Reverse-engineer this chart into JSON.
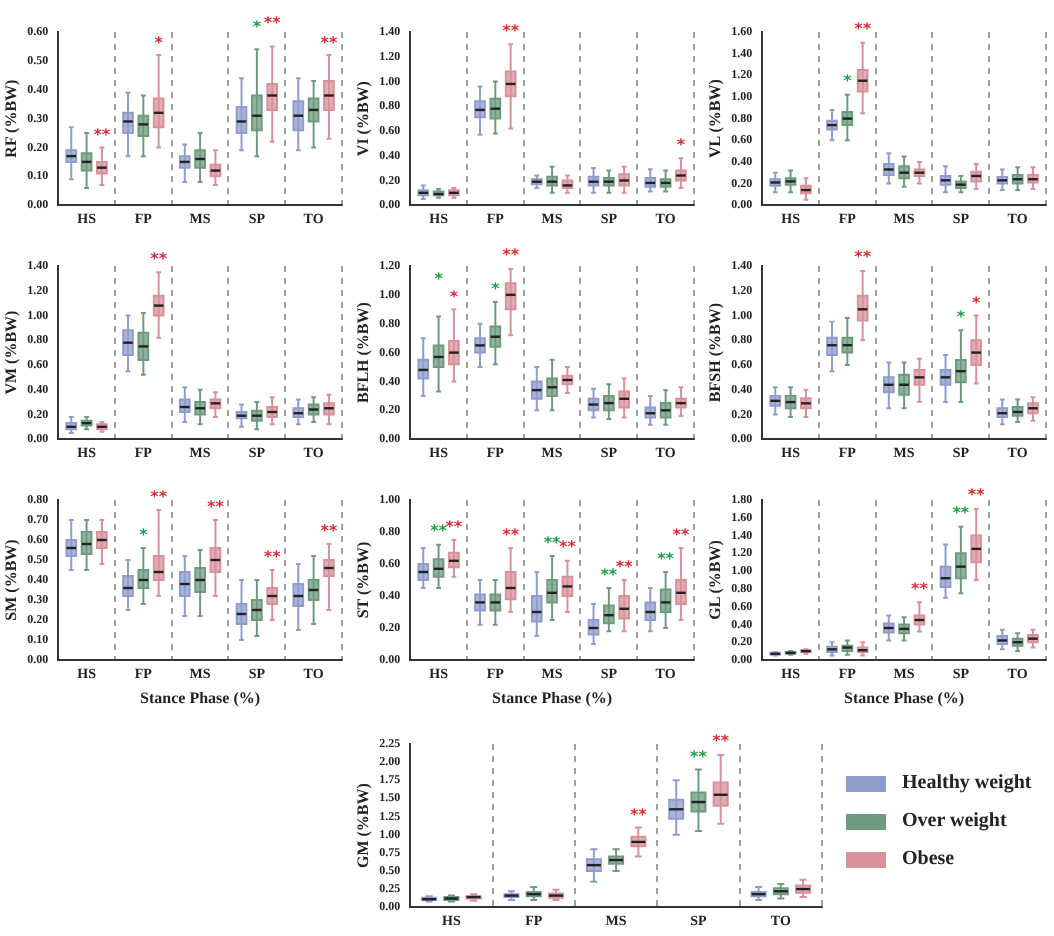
{
  "chart_data": [
    {
      "type": "box",
      "ylabel": "RF (%BW)",
      "categories": [
        "HS",
        "FP",
        "MS",
        "SP",
        "TO"
      ],
      "ylim": [
        0,
        0.6
      ],
      "yticks": [
        {
          "value": 0,
          "label": "0.00"
        },
        {
          "value": 0.1,
          "label": "0.10"
        },
        {
          "value": 0.2,
          "label": "0.20"
        },
        {
          "value": 0.3,
          "label": "0.30"
        },
        {
          "value": 0.4,
          "label": "0.40"
        },
        {
          "value": 0.5,
          "label": "0.50"
        },
        {
          "value": 0.6,
          "label": "0.60"
        }
      ],
      "grid": "x",
      "series": [
        {
          "color": "#8f9ccc",
          "boxes": [
            {
              "low": 0.09,
              "q1": 0.15,
              "median": 0.17,
              "q3": 0.19,
              "high": 0.27
            },
            {
              "low": 0.17,
              "q1": 0.25,
              "median": 0.29,
              "q3": 0.32,
              "high": 0.39
            },
            {
              "low": 0.08,
              "q1": 0.13,
              "median": 0.15,
              "q3": 0.17,
              "high": 0.21
            },
            {
              "low": 0.19,
              "q1": 0.25,
              "median": 0.29,
              "q3": 0.34,
              "high": 0.44
            },
            {
              "low": 0.19,
              "q1": 0.26,
              "median": 0.31,
              "q3": 0.36,
              "high": 0.44
            }
          ]
        },
        {
          "color": "#6e9a7e",
          "boxes": [
            {
              "low": 0.06,
              "q1": 0.12,
              "median": 0.15,
              "q3": 0.18,
              "high": 0.25
            },
            {
              "low": 0.17,
              "q1": 0.24,
              "median": 0.28,
              "q3": 0.31,
              "high": 0.38
            },
            {
              "low": 0.08,
              "q1": 0.13,
              "median": 0.16,
              "q3": 0.19,
              "high": 0.25
            },
            {
              "low": 0.17,
              "q1": 0.26,
              "median": 0.31,
              "q3": 0.38,
              "high": 0.54
            },
            {
              "low": 0.2,
              "q1": 0.29,
              "median": 0.33,
              "q3": 0.37,
              "high": 0.43
            }
          ]
        },
        {
          "color": "#d8909a",
          "boxes": [
            {
              "low": 0.07,
              "q1": 0.11,
              "median": 0.13,
              "q3": 0.15,
              "high": 0.2
            },
            {
              "low": 0.2,
              "q1": 0.27,
              "median": 0.32,
              "q3": 0.37,
              "high": 0.52
            },
            {
              "low": 0.07,
              "q1": 0.1,
              "median": 0.12,
              "q3": 0.14,
              "high": 0.19
            },
            {
              "low": 0.22,
              "q1": 0.33,
              "median": 0.38,
              "q3": 0.42,
              "high": 0.55
            },
            {
              "low": 0.23,
              "q1": 0.33,
              "median": 0.38,
              "q3": 0.43,
              "high": 0.52
            }
          ]
        }
      ],
      "annotations": [
        "**",
        "*",
        "*",
        "**",
        "**"
      ]
    },
    {
      "type": "box",
      "ylabel": "VI (%BW)",
      "categories": [
        "HS",
        "FP",
        "MS",
        "SP",
        "TO"
      ],
      "ylim": [
        0,
        1.4
      ],
      "yticks": [
        {
          "value": 0,
          "label": "0.00"
        },
        {
          "value": 0.2,
          "label": "0.20"
        },
        {
          "value": 0.4,
          "label": "0.40"
        },
        {
          "value": 0.6,
          "label": "0.60"
        },
        {
          "value": 0.8,
          "label": "0.80"
        },
        {
          "value": 1,
          "label": "1.00"
        },
        {
          "value": 1.2,
          "label": "1.20"
        },
        {
          "value": 1.4,
          "label": "1.40"
        }
      ],
      "grid": "x",
      "series": [
        {
          "color": "#8f9ccc",
          "boxes": [
            {
              "low": 0.05,
              "q1": 0.08,
              "median": 0.1,
              "q3": 0.12,
              "high": 0.16
            },
            {
              "low": 0.57,
              "q1": 0.71,
              "median": 0.77,
              "q3": 0.84,
              "high": 0.96
            },
            {
              "low": 0.14,
              "q1": 0.17,
              "median": 0.19,
              "q3": 0.21,
              "high": 0.24
            },
            {
              "low": 0.1,
              "q1": 0.16,
              "median": 0.19,
              "q3": 0.23,
              "high": 0.3
            },
            {
              "low": 0.11,
              "q1": 0.15,
              "median": 0.18,
              "q3": 0.22,
              "high": 0.29
            }
          ]
        },
        {
          "color": "#6e9a7e",
          "boxes": [
            {
              "low": 0.06,
              "q1": 0.08,
              "median": 0.09,
              "q3": 0.11,
              "high": 0.13
            },
            {
              "low": 0.58,
              "q1": 0.7,
              "median": 0.78,
              "q3": 0.86,
              "high": 1.0
            },
            {
              "low": 0.1,
              "q1": 0.16,
              "median": 0.19,
              "q3": 0.23,
              "high": 0.31
            },
            {
              "low": 0.1,
              "q1": 0.16,
              "median": 0.19,
              "q3": 0.22,
              "high": 0.28
            },
            {
              "low": 0.11,
              "q1": 0.15,
              "median": 0.18,
              "q3": 0.21,
              "high": 0.28
            }
          ]
        },
        {
          "color": "#d8909a",
          "boxes": [
            {
              "low": 0.06,
              "q1": 0.08,
              "median": 0.1,
              "q3": 0.12,
              "high": 0.14
            },
            {
              "low": 0.62,
              "q1": 0.88,
              "median": 0.98,
              "q3": 1.08,
              "high": 1.3
            },
            {
              "low": 0.1,
              "q1": 0.14,
              "median": 0.16,
              "q3": 0.2,
              "high": 0.24
            },
            {
              "low": 0.1,
              "q1": 0.16,
              "median": 0.2,
              "q3": 0.25,
              "high": 0.31
            },
            {
              "low": 0.14,
              "q1": 0.2,
              "median": 0.24,
              "q3": 0.28,
              "high": 0.38
            }
          ]
        }
      ],
      "annotations": [
        "**",
        "*"
      ]
    },
    {
      "type": "box",
      "ylabel": "VL (%BW)",
      "categories": [
        "HS",
        "FP",
        "MS",
        "SP",
        "TO"
      ],
      "ylim": [
        0,
        1.6
      ],
      "yticks": [
        {
          "value": 0,
          "label": "0.00"
        },
        {
          "value": 0.2,
          "label": "0.20"
        },
        {
          "value": 0.4,
          "label": "0.40"
        },
        {
          "value": 0.6,
          "label": "0.60"
        },
        {
          "value": 0.8,
          "label": "0.80"
        },
        {
          "value": 1,
          "label": "1.00"
        },
        {
          "value": 1.2,
          "label": "1.20"
        },
        {
          "value": 1.4,
          "label": "1.40"
        },
        {
          "value": 1.6,
          "label": "1.60"
        }
      ],
      "grid": "x",
      "series": [
        {
          "color": "#8f9ccc",
          "boxes": [
            {
              "low": 0.12,
              "q1": 0.18,
              "median": 0.21,
              "q3": 0.24,
              "high": 0.3
            },
            {
              "low": 0.6,
              "q1": 0.7,
              "median": 0.74,
              "q3": 0.78,
              "high": 0.88
            },
            {
              "low": 0.2,
              "q1": 0.28,
              "median": 0.33,
              "q3": 0.38,
              "high": 0.48
            },
            {
              "low": 0.12,
              "q1": 0.19,
              "median": 0.23,
              "q3": 0.27,
              "high": 0.36
            },
            {
              "low": 0.14,
              "q1": 0.2,
              "median": 0.23,
              "q3": 0.26,
              "high": 0.33
            }
          ]
        },
        {
          "color": "#6e9a7e",
          "boxes": [
            {
              "low": 0.12,
              "q1": 0.19,
              "median": 0.22,
              "q3": 0.25,
              "high": 0.32
            },
            {
              "low": 0.6,
              "q1": 0.74,
              "median": 0.8,
              "q3": 0.86,
              "high": 1.02
            },
            {
              "low": 0.17,
              "q1": 0.25,
              "median": 0.3,
              "q3": 0.36,
              "high": 0.45
            },
            {
              "low": 0.12,
              "q1": 0.16,
              "median": 0.19,
              "q3": 0.22,
              "high": 0.27
            },
            {
              "low": 0.14,
              "q1": 0.2,
              "median": 0.24,
              "q3": 0.28,
              "high": 0.35
            }
          ]
        },
        {
          "color": "#d8909a",
          "boxes": [
            {
              "low": 0.05,
              "q1": 0.11,
              "median": 0.14,
              "q3": 0.18,
              "high": 0.25
            },
            {
              "low": 0.85,
              "q1": 1.05,
              "median": 1.15,
              "q3": 1.25,
              "high": 1.5
            },
            {
              "low": 0.2,
              "q1": 0.27,
              "median": 0.3,
              "q3": 0.33,
              "high": 0.4
            },
            {
              "low": 0.15,
              "q1": 0.22,
              "median": 0.27,
              "q3": 0.31,
              "high": 0.38
            },
            {
              "low": 0.15,
              "q1": 0.21,
              "median": 0.24,
              "q3": 0.28,
              "high": 0.35
            }
          ]
        }
      ],
      "annotations": [
        "*",
        "**"
      ]
    },
    {
      "type": "box",
      "ylabel": "VM (%BW)",
      "categories": [
        "HS",
        "FP",
        "MS",
        "SP",
        "TO"
      ],
      "ylim": [
        0,
        1.4
      ],
      "yticks": [
        {
          "value": 0,
          "label": "0.00"
        },
        {
          "value": 0.2,
          "label": "0.20"
        },
        {
          "value": 0.4,
          "label": "0.40"
        },
        {
          "value": 0.6,
          "label": "0.60"
        },
        {
          "value": 0.8,
          "label": "0.80"
        },
        {
          "value": 1,
          "label": "1.00"
        },
        {
          "value": 1.2,
          "label": "1.20"
        },
        {
          "value": 1.4,
          "label": "1.40"
        }
      ],
      "grid": "x",
      "series": [
        {
          "color": "#8f9ccc",
          "boxes": [
            {
              "low": 0.05,
              "q1": 0.08,
              "median": 0.1,
              "q3": 0.13,
              "high": 0.18
            },
            {
              "low": 0.55,
              "q1": 0.68,
              "median": 0.78,
              "q3": 0.88,
              "high": 1.0
            },
            {
              "low": 0.14,
              "q1": 0.22,
              "median": 0.26,
              "q3": 0.32,
              "high": 0.42
            },
            {
              "low": 0.1,
              "q1": 0.17,
              "median": 0.19,
              "q3": 0.22,
              "high": 0.28
            },
            {
              "low": 0.12,
              "q1": 0.18,
              "median": 0.21,
              "q3": 0.25,
              "high": 0.32
            }
          ]
        },
        {
          "color": "#6e9a7e",
          "boxes": [
            {
              "low": 0.08,
              "q1": 0.11,
              "median": 0.13,
              "q3": 0.15,
              "high": 0.18
            },
            {
              "low": 0.52,
              "q1": 0.64,
              "median": 0.75,
              "q3": 0.86,
              "high": 1.02
            },
            {
              "low": 0.12,
              "q1": 0.2,
              "median": 0.25,
              "q3": 0.3,
              "high": 0.4
            },
            {
              "low": 0.08,
              "q1": 0.15,
              "median": 0.19,
              "q3": 0.23,
              "high": 0.3
            },
            {
              "low": 0.14,
              "q1": 0.2,
              "median": 0.24,
              "q3": 0.28,
              "high": 0.34
            }
          ]
        },
        {
          "color": "#d8909a",
          "boxes": [
            {
              "low": 0.06,
              "q1": 0.08,
              "median": 0.1,
              "q3": 0.12,
              "high": 0.14
            },
            {
              "low": 0.82,
              "q1": 1.0,
              "median": 1.08,
              "q3": 1.16,
              "high": 1.35
            },
            {
              "low": 0.18,
              "q1": 0.25,
              "median": 0.29,
              "q3": 0.32,
              "high": 0.38
            },
            {
              "low": 0.12,
              "q1": 0.18,
              "median": 0.22,
              "q3": 0.26,
              "high": 0.34
            },
            {
              "low": 0.12,
              "q1": 0.2,
              "median": 0.25,
              "q3": 0.29,
              "high": 0.36
            }
          ]
        }
      ],
      "annotations": [
        "**"
      ]
    },
    {
      "type": "box",
      "ylabel": "BFLH (%BW)",
      "categories": [
        "HS",
        "FP",
        "MS",
        "SP",
        "TO"
      ],
      "ylim": [
        0,
        1.2
      ],
      "yticks": [
        {
          "value": 0,
          "label": "0.00"
        },
        {
          "value": 0.2,
          "label": "0.20"
        },
        {
          "value": 0.4,
          "label": "0.40"
        },
        {
          "value": 0.6,
          "label": "0.60"
        },
        {
          "value": 0.8,
          "label": "0.80"
        },
        {
          "value": 1,
          "label": "1.00"
        },
        {
          "value": 1.2,
          "label": "1.20"
        }
      ],
      "grid": "x",
      "series": [
        {
          "color": "#8f9ccc",
          "boxes": [
            {
              "low": 0.3,
              "q1": 0.42,
              "median": 0.48,
              "q3": 0.55,
              "high": 0.7
            },
            {
              "low": 0.5,
              "q1": 0.6,
              "median": 0.65,
              "q3": 0.7,
              "high": 0.8
            },
            {
              "low": 0.2,
              "q1": 0.28,
              "median": 0.34,
              "q3": 0.4,
              "high": 0.5
            },
            {
              "low": 0.15,
              "q1": 0.2,
              "median": 0.24,
              "q3": 0.28,
              "high": 0.35
            },
            {
              "low": 0.1,
              "q1": 0.15,
              "median": 0.18,
              "q3": 0.22,
              "high": 0.3
            }
          ]
        },
        {
          "color": "#6e9a7e",
          "boxes": [
            {
              "low": 0.33,
              "q1": 0.5,
              "median": 0.57,
              "q3": 0.65,
              "high": 0.85
            },
            {
              "low": 0.52,
              "q1": 0.64,
              "median": 0.71,
              "q3": 0.78,
              "high": 0.95
            },
            {
              "low": 0.2,
              "q1": 0.3,
              "median": 0.36,
              "q3": 0.42,
              "high": 0.55
            },
            {
              "low": 0.14,
              "q1": 0.2,
              "median": 0.25,
              "q3": 0.3,
              "high": 0.38
            },
            {
              "low": 0.1,
              "q1": 0.15,
              "median": 0.2,
              "q3": 0.25,
              "high": 0.34
            }
          ]
        },
        {
          "color": "#d8909a",
          "boxes": [
            {
              "low": 0.4,
              "q1": 0.52,
              "median": 0.6,
              "q3": 0.68,
              "high": 0.9
            },
            {
              "low": 0.72,
              "q1": 0.9,
              "median": 1.0,
              "q3": 1.08,
              "high": 1.18
            },
            {
              "low": 0.32,
              "q1": 0.38,
              "median": 0.41,
              "q3": 0.44,
              "high": 0.5
            },
            {
              "low": 0.15,
              "q1": 0.22,
              "median": 0.28,
              "q3": 0.33,
              "high": 0.42
            },
            {
              "low": 0.16,
              "q1": 0.22,
              "median": 0.25,
              "q3": 0.28,
              "high": 0.36
            }
          ]
        }
      ],
      "annotations": [
        "*",
        "*",
        "*",
        "**"
      ]
    },
    {
      "type": "box",
      "ylabel": "BFSH (%BW)",
      "categories": [
        "HS",
        "FP",
        "MS",
        "SP",
        "TO"
      ],
      "ylim": [
        0,
        1.4
      ],
      "yticks": [
        {
          "value": 0,
          "label": "0.00"
        },
        {
          "value": 0.2,
          "label": "0.20"
        },
        {
          "value": 0.4,
          "label": "0.40"
        },
        {
          "value": 0.6,
          "label": "0.60"
        },
        {
          "value": 0.8,
          "label": "0.80"
        },
        {
          "value": 1,
          "label": "1.00"
        },
        {
          "value": 1.2,
          "label": "1.20"
        },
        {
          "value": 1.4,
          "label": "1.40"
        }
      ],
      "grid": "x",
      "series": [
        {
          "color": "#8f9ccc",
          "boxes": [
            {
              "low": 0.2,
              "q1": 0.27,
              "median": 0.31,
              "q3": 0.35,
              "high": 0.42
            },
            {
              "low": 0.55,
              "q1": 0.68,
              "median": 0.76,
              "q3": 0.82,
              "high": 0.95
            },
            {
              "low": 0.25,
              "q1": 0.38,
              "median": 0.44,
              "q3": 0.5,
              "high": 0.62
            },
            {
              "low": 0.3,
              "q1": 0.44,
              "median": 0.5,
              "q3": 0.56,
              "high": 0.68
            },
            {
              "low": 0.12,
              "q1": 0.18,
              "median": 0.21,
              "q3": 0.25,
              "high": 0.32
            }
          ]
        },
        {
          "color": "#6e9a7e",
          "boxes": [
            {
              "low": 0.18,
              "q1": 0.25,
              "median": 0.3,
              "q3": 0.35,
              "high": 0.42
            },
            {
              "low": 0.6,
              "q1": 0.7,
              "median": 0.76,
              "q3": 0.82,
              "high": 0.98
            },
            {
              "low": 0.25,
              "q1": 0.36,
              "median": 0.44,
              "q3": 0.52,
              "high": 0.62
            },
            {
              "low": 0.3,
              "q1": 0.46,
              "median": 0.55,
              "q3": 0.64,
              "high": 0.88
            },
            {
              "low": 0.14,
              "q1": 0.19,
              "median": 0.22,
              "q3": 0.26,
              "high": 0.32
            }
          ]
        },
        {
          "color": "#d8909a",
          "boxes": [
            {
              "low": 0.18,
              "q1": 0.25,
              "median": 0.29,
              "q3": 0.33,
              "high": 0.4
            },
            {
              "low": 0.8,
              "q1": 0.96,
              "median": 1.05,
              "q3": 1.16,
              "high": 1.36
            },
            {
              "low": 0.3,
              "q1": 0.44,
              "median": 0.5,
              "q3": 0.56,
              "high": 0.65
            },
            {
              "low": 0.45,
              "q1": 0.6,
              "median": 0.7,
              "q3": 0.8,
              "high": 1.0
            },
            {
              "low": 0.15,
              "q1": 0.21,
              "median": 0.25,
              "q3": 0.29,
              "high": 0.34
            }
          ]
        }
      ],
      "annotations": [
        "**",
        "*",
        "*"
      ]
    },
    {
      "type": "box",
      "ylabel": "SM (%BW)",
      "xlabel": "Stance Phase (%)",
      "categories": [
        "HS",
        "FP",
        "MS",
        "SP",
        "TO"
      ],
      "ylim": [
        0,
        0.8
      ],
      "yticks": [
        {
          "value": 0,
          "label": "0.00"
        },
        {
          "value": 0.1,
          "label": "0.10"
        },
        {
          "value": 0.2,
          "label": "0.20"
        },
        {
          "value": 0.3,
          "label": "0.30"
        },
        {
          "value": 0.4,
          "label": "0.40"
        },
        {
          "value": 0.5,
          "label": "0.50"
        },
        {
          "value": 0.6,
          "label": "0.60"
        },
        {
          "value": 0.7,
          "label": "0.70"
        },
        {
          "value": 0.8,
          "label": "0.80"
        }
      ],
      "grid": "x",
      "series": [
        {
          "color": "#8f9ccc",
          "boxes": [
            {
              "low": 0.45,
              "q1": 0.52,
              "median": 0.56,
              "q3": 0.6,
              "high": 0.7
            },
            {
              "low": 0.25,
              "q1": 0.32,
              "median": 0.36,
              "q3": 0.42,
              "high": 0.5
            },
            {
              "low": 0.22,
              "q1": 0.32,
              "median": 0.38,
              "q3": 0.44,
              "high": 0.52
            },
            {
              "low": 0.1,
              "q1": 0.18,
              "median": 0.23,
              "q3": 0.28,
              "high": 0.4
            },
            {
              "low": 0.15,
              "q1": 0.27,
              "median": 0.32,
              "q3": 0.38,
              "high": 0.48
            }
          ]
        },
        {
          "color": "#6e9a7e",
          "boxes": [
            {
              "low": 0.45,
              "q1": 0.53,
              "median": 0.58,
              "q3": 0.64,
              "high": 0.7
            },
            {
              "low": 0.28,
              "q1": 0.36,
              "median": 0.4,
              "q3": 0.45,
              "high": 0.56
            },
            {
              "low": 0.22,
              "q1": 0.34,
              "median": 0.4,
              "q3": 0.46,
              "high": 0.55
            },
            {
              "low": 0.12,
              "q1": 0.2,
              "median": 0.25,
              "q3": 0.3,
              "high": 0.4
            },
            {
              "low": 0.18,
              "q1": 0.3,
              "median": 0.35,
              "q3": 0.4,
              "high": 0.52
            }
          ]
        },
        {
          "color": "#d8909a",
          "boxes": [
            {
              "low": 0.48,
              "q1": 0.56,
              "median": 0.6,
              "q3": 0.64,
              "high": 0.7
            },
            {
              "low": 0.32,
              "q1": 0.4,
              "median": 0.44,
              "q3": 0.52,
              "high": 0.75
            },
            {
              "low": 0.32,
              "q1": 0.44,
              "median": 0.5,
              "q3": 0.56,
              "high": 0.7
            },
            {
              "low": 0.2,
              "q1": 0.28,
              "median": 0.32,
              "q3": 0.36,
              "high": 0.45
            },
            {
              "low": 0.25,
              "q1": 0.42,
              "median": 0.46,
              "q3": 0.5,
              "high": 0.58
            }
          ]
        }
      ],
      "annotations": [
        "*",
        "**",
        "**",
        "**",
        "**"
      ]
    },
    {
      "type": "box",
      "ylabel": "ST (%BW)",
      "xlabel": "Stance Phase (%)",
      "categories": [
        "HS",
        "FP",
        "MS",
        "SP",
        "TO"
      ],
      "ylim": [
        0,
        1
      ],
      "yticks": [
        {
          "value": 0,
          "label": "0.00"
        },
        {
          "value": 0.2,
          "label": "0.20"
        },
        {
          "value": 0.4,
          "label": "0.40"
        },
        {
          "value": 0.6,
          "label": "0.60"
        },
        {
          "value": 0.8,
          "label": "0.80"
        },
        {
          "value": 1,
          "label": "1.00"
        }
      ],
      "grid": "x",
      "series": [
        {
          "color": "#8f9ccc",
          "boxes": [
            {
              "low": 0.45,
              "q1": 0.5,
              "median": 0.55,
              "q3": 0.6,
              "high": 0.7
            },
            {
              "low": 0.22,
              "q1": 0.31,
              "median": 0.36,
              "q3": 0.41,
              "high": 0.5
            },
            {
              "low": 0.15,
              "q1": 0.24,
              "median": 0.3,
              "q3": 0.4,
              "high": 0.55
            },
            {
              "low": 0.1,
              "q1": 0.16,
              "median": 0.2,
              "q3": 0.25,
              "high": 0.35
            },
            {
              "low": 0.18,
              "q1": 0.25,
              "median": 0.3,
              "q3": 0.36,
              "high": 0.45
            }
          ]
        },
        {
          "color": "#6e9a7e",
          "boxes": [
            {
              "low": 0.45,
              "q1": 0.52,
              "median": 0.57,
              "q3": 0.63,
              "high": 0.72
            },
            {
              "low": 0.22,
              "q1": 0.31,
              "median": 0.36,
              "q3": 0.41,
              "high": 0.5
            },
            {
              "low": 0.25,
              "q1": 0.36,
              "median": 0.42,
              "q3": 0.5,
              "high": 0.65
            },
            {
              "low": 0.18,
              "q1": 0.23,
              "median": 0.28,
              "q3": 0.34,
              "high": 0.45
            },
            {
              "low": 0.2,
              "q1": 0.3,
              "median": 0.36,
              "q3": 0.44,
              "high": 0.55
            }
          ]
        },
        {
          "color": "#d8909a",
          "boxes": [
            {
              "low": 0.52,
              "q1": 0.58,
              "median": 0.62,
              "q3": 0.67,
              "high": 0.75
            },
            {
              "low": 0.3,
              "q1": 0.38,
              "median": 0.45,
              "q3": 0.55,
              "high": 0.7
            },
            {
              "low": 0.3,
              "q1": 0.4,
              "median": 0.46,
              "q3": 0.52,
              "high": 0.62
            },
            {
              "low": 0.18,
              "q1": 0.26,
              "median": 0.32,
              "q3": 0.4,
              "high": 0.5
            },
            {
              "low": 0.25,
              "q1": 0.35,
              "median": 0.42,
              "q3": 0.5,
              "high": 0.7
            }
          ]
        }
      ],
      "annotations": [
        "**",
        "**",
        "**",
        "**",
        "**",
        "**",
        "**",
        "**",
        "**"
      ]
    },
    {
      "type": "box",
      "ylabel": "GL (%BW)",
      "xlabel": "Stance Phase (%)",
      "categories": [
        "HS",
        "FP",
        "MS",
        "SP",
        "TO"
      ],
      "ylim": [
        0,
        1.8
      ],
      "yticks": [
        {
          "value": 0,
          "label": "0.00"
        },
        {
          "value": 0.2,
          "label": "0.20"
        },
        {
          "value": 0.4,
          "label": "0.40"
        },
        {
          "value": 0.6,
          "label": "0.60"
        },
        {
          "value": 0.8,
          "label": "0.80"
        },
        {
          "value": 1,
          "label": "1.00"
        },
        {
          "value": 1.2,
          "label": "1.20"
        },
        {
          "value": 1.4,
          "label": "1.40"
        },
        {
          "value": 1.6,
          "label": "1.60"
        },
        {
          "value": 1.8,
          "label": "1.80"
        }
      ],
      "grid": "x",
      "series": [
        {
          "color": "#8f9ccc",
          "boxes": [
            {
              "low": 0.05,
              "q1": 0.06,
              "median": 0.07,
              "q3": 0.08,
              "high": 0.09
            },
            {
              "low": 0.05,
              "q1": 0.09,
              "median": 0.12,
              "q3": 0.15,
              "high": 0.2
            },
            {
              "low": 0.22,
              "q1": 0.31,
              "median": 0.36,
              "q3": 0.41,
              "high": 0.5
            },
            {
              "low": 0.7,
              "q1": 0.82,
              "median": 0.92,
              "q3": 1.05,
              "high": 1.3
            },
            {
              "low": 0.12,
              "q1": 0.18,
              "median": 0.22,
              "q3": 0.27,
              "high": 0.34
            }
          ]
        },
        {
          "color": "#6e9a7e",
          "boxes": [
            {
              "low": 0.06,
              "q1": 0.07,
              "median": 0.08,
              "q3": 0.09,
              "high": 0.1
            },
            {
              "low": 0.06,
              "q1": 0.1,
              "median": 0.14,
              "q3": 0.16,
              "high": 0.22
            },
            {
              "low": 0.22,
              "q1": 0.3,
              "median": 0.35,
              "q3": 0.4,
              "high": 0.48
            },
            {
              "low": 0.75,
              "q1": 0.92,
              "median": 1.05,
              "q3": 1.2,
              "high": 1.5
            },
            {
              "low": 0.1,
              "q1": 0.16,
              "median": 0.2,
              "q3": 0.24,
              "high": 0.3
            }
          ]
        },
        {
          "color": "#d8909a",
          "boxes": [
            {
              "low": 0.07,
              "q1": 0.09,
              "median": 0.1,
              "q3": 0.11,
              "high": 0.12
            },
            {
              "low": 0.05,
              "q1": 0.09,
              "median": 0.11,
              "q3": 0.14,
              "high": 0.2
            },
            {
              "low": 0.32,
              "q1": 0.4,
              "median": 0.45,
              "q3": 0.5,
              "high": 0.65
            },
            {
              "low": 0.9,
              "q1": 1.1,
              "median": 1.25,
              "q3": 1.4,
              "high": 1.7
            },
            {
              "low": 0.14,
              "q1": 0.2,
              "median": 0.24,
              "q3": 0.28,
              "high": 0.34
            }
          ]
        }
      ],
      "annotations": [
        "**",
        "**",
        "**"
      ]
    },
    {
      "type": "box",
      "ylabel": "GM (%BW)",
      "categories": [
        "HS",
        "FP",
        "MS",
        "SP",
        "TO"
      ],
      "ylim": [
        0,
        2.25
      ],
      "yticks": [
        {
          "value": 0,
          "label": "0.00"
        },
        {
          "value": 0.25,
          "label": "0.25"
        },
        {
          "value": 0.5,
          "label": "0.50"
        },
        {
          "value": 0.75,
          "label": "0.75"
        },
        {
          "value": 1,
          "label": "1.00"
        },
        {
          "value": 1.25,
          "label": "1.25"
        },
        {
          "value": 1.5,
          "label": "1.50"
        },
        {
          "value": 1.75,
          "label": "1.75"
        },
        {
          "value": 2,
          "label": "2.00"
        },
        {
          "value": 2.25,
          "label": "2.25"
        }
      ],
      "grid": "x",
      "legend": "right",
      "series": [
        {
          "name": "Healthy weight",
          "color": "#8f9ccc",
          "boxes": [
            {
              "low": 0.08,
              "q1": 0.1,
              "median": 0.11,
              "q3": 0.13,
              "high": 0.15
            },
            {
              "low": 0.1,
              "q1": 0.14,
              "median": 0.16,
              "q3": 0.18,
              "high": 0.22
            },
            {
              "low": 0.35,
              "q1": 0.5,
              "median": 0.58,
              "q3": 0.66,
              "high": 0.8
            },
            {
              "low": 1.0,
              "q1": 1.22,
              "median": 1.35,
              "q3": 1.48,
              "high": 1.75
            },
            {
              "low": 0.1,
              "q1": 0.15,
              "median": 0.18,
              "q3": 0.21,
              "high": 0.28
            }
          ]
        },
        {
          "name": "Over weight",
          "color": "#6e9a7e",
          "boxes": [
            {
              "low": 0.08,
              "q1": 0.1,
              "median": 0.12,
              "q3": 0.14,
              "high": 0.16
            },
            {
              "low": 0.1,
              "q1": 0.15,
              "median": 0.18,
              "q3": 0.21,
              "high": 0.28
            },
            {
              "low": 0.5,
              "q1": 0.6,
              "median": 0.65,
              "q3": 0.7,
              "high": 0.8
            },
            {
              "low": 1.05,
              "q1": 1.32,
              "median": 1.45,
              "q3": 1.58,
              "high": 1.9
            },
            {
              "low": 0.12,
              "q1": 0.18,
              "median": 0.22,
              "q3": 0.26,
              "high": 0.32
            }
          ]
        },
        {
          "name": "Obese",
          "color": "#d8909a",
          "boxes": [
            {
              "low": 0.09,
              "q1": 0.12,
              "median": 0.14,
              "q3": 0.15,
              "high": 0.18
            },
            {
              "low": 0.1,
              "q1": 0.13,
              "median": 0.16,
              "q3": 0.19,
              "high": 0.24
            },
            {
              "low": 0.7,
              "q1": 0.84,
              "median": 0.9,
              "q3": 0.97,
              "high": 1.1
            },
            {
              "low": 1.15,
              "q1": 1.4,
              "median": 1.55,
              "q3": 1.72,
              "high": 2.1
            },
            {
              "low": 0.14,
              "q1": 0.2,
              "median": 0.25,
              "q3": 0.3,
              "high": 0.38
            }
          ]
        }
      ],
      "annotations": [
        "**",
        "**",
        "**"
      ]
    }
  ]
}
